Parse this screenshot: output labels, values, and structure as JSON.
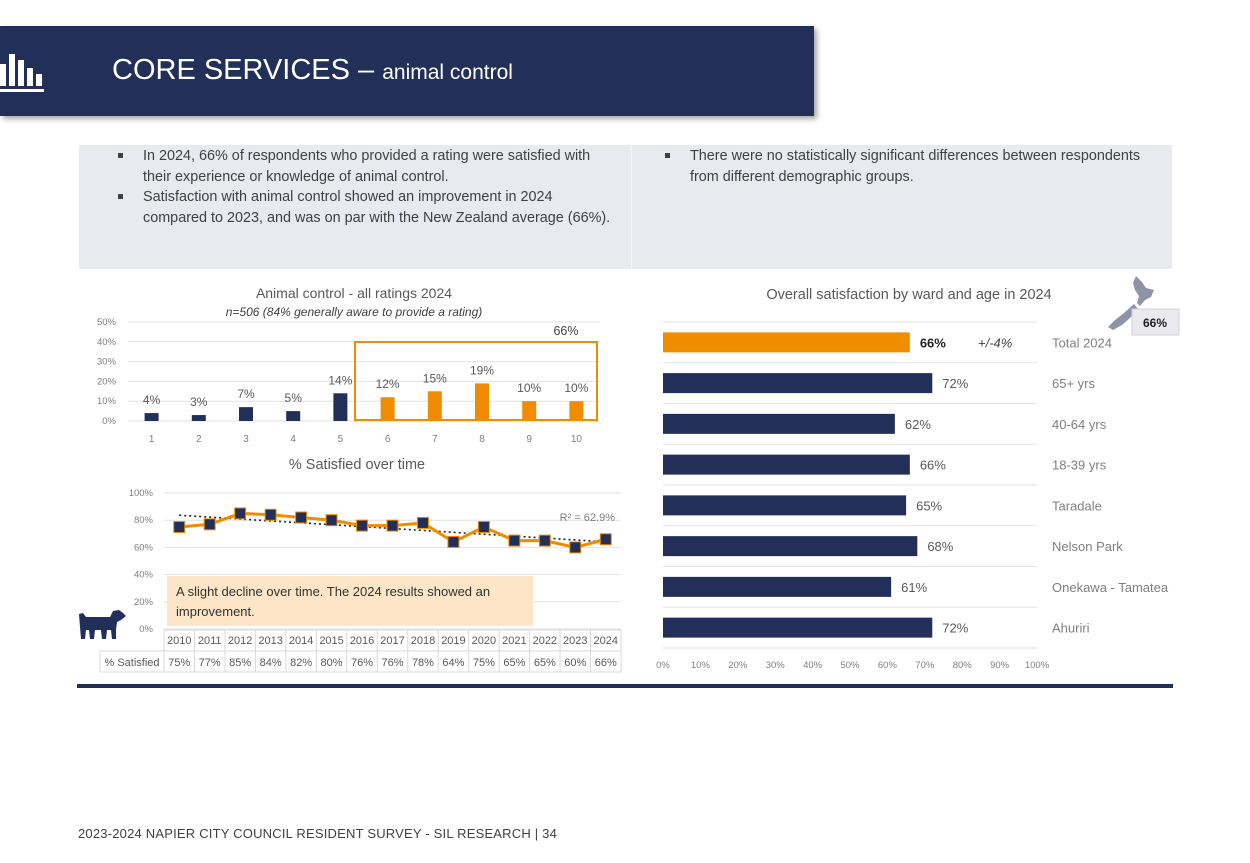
{
  "header": {
    "title_main": "CORE SERVICES – ",
    "title_sub": "animal control"
  },
  "bullets_left": [
    "In 2024, 66% of respondents who provided a rating were satisfied with their experience or knowledge of animal control.",
    "Satisfaction with animal control showed an improvement in 2024 compared to 2023, and was on par with the New Zealand average (66%)."
  ],
  "bullets_right": [
    "There were no statistically significant differences between respondents from different demographic groups."
  ],
  "nz_badge": "66%",
  "annotation": "A slight decline over time. The 2024 results showed an improvement.",
  "footer": "2023-2024 NAPIER CITY COUNCIL RESIDENT SURVEY - SIL RESEARCH | 34",
  "colors": {
    "navy": "#223059",
    "orange": "#f08c00",
    "note_bg": "#fde5c7",
    "box_bg": "#e9eaef"
  },
  "icons": {
    "banner": "bar-chart-icon",
    "dog": "dog-icon",
    "map": "new-zealand-map-icon"
  },
  "chart_data": [
    {
      "type": "bar",
      "title": "Animal control - all ratings 2024",
      "subtitle": "n=506 (84% generally aware to provide a rating)",
      "categories": [
        "1",
        "2",
        "3",
        "4",
        "5",
        "6",
        "7",
        "8",
        "9",
        "10"
      ],
      "values": [
        4,
        3,
        7,
        5,
        14,
        12,
        15,
        19,
        10,
        10
      ],
      "data_labels": [
        "4%",
        "3%",
        "7%",
        "5%",
        "14%",
        "12%",
        "15%",
        "19%",
        "10%",
        "10%"
      ],
      "y_ticks": [
        "0%",
        "10%",
        "20%",
        "30%",
        "40%",
        "50%"
      ],
      "ylim": [
        0,
        50
      ],
      "highlight": {
        "range": [
          "6",
          "10"
        ],
        "label": "66%"
      },
      "grid": true
    },
    {
      "type": "line",
      "title": "% Satisfied over time",
      "x": [
        "2010",
        "2011",
        "2012",
        "2013",
        "2014",
        "2015",
        "2016",
        "2017",
        "2018",
        "2019",
        "2020",
        "2021",
        "2022",
        "2023",
        "2024"
      ],
      "values": [
        75,
        77,
        85,
        84,
        82,
        80,
        76,
        76,
        78,
        64,
        75,
        65,
        65,
        60,
        66
      ],
      "y_ticks": [
        "0%",
        "20%",
        "40%",
        "60%",
        "80%",
        "100%"
      ],
      "ylim": [
        0,
        100
      ],
      "trendline": {
        "type": "linear",
        "label": "R² = 62.9%"
      },
      "table": {
        "row_label": "% Satisfied",
        "cells": [
          "75%",
          "77%",
          "85%",
          "84%",
          "82%",
          "80%",
          "76%",
          "76%",
          "78%",
          "64%",
          "75%",
          "65%",
          "65%",
          "60%",
          "66%"
        ]
      },
      "grid": true
    },
    {
      "type": "bar",
      "orientation": "horizontal",
      "title": "Overall satisfaction by ward and age in 2024",
      "categories": [
        "Total 2024",
        "65+ yrs",
        "40-64 yrs",
        "18-39 yrs",
        "Taradale",
        "Nelson Park",
        "Onekawa - Tamatea",
        "Ahuriri"
      ],
      "values": [
        66,
        72,
        62,
        66,
        65,
        68,
        61,
        72
      ],
      "data_labels": [
        "66%",
        "72%",
        "62%",
        "66%",
        "65%",
        "68%",
        "61%",
        "72%"
      ],
      "total_margin_label": "+/-4%",
      "x_ticks": [
        "0%",
        "10%",
        "20%",
        "30%",
        "40%",
        "50%",
        "60%",
        "70%",
        "80%",
        "90%",
        "100%"
      ],
      "xlim": [
        0,
        100
      ],
      "grid": true
    }
  ]
}
